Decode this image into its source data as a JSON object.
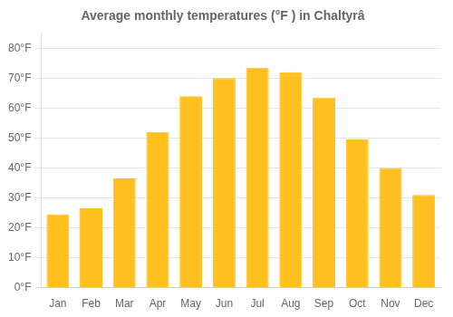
{
  "chart_data": {
    "type": "bar",
    "title": "Average monthly temperatures (°F ) in Chaltyrâ",
    "categories": [
      "Jan",
      "Feb",
      "Mar",
      "Apr",
      "May",
      "Jun",
      "Jul",
      "Aug",
      "Sep",
      "Oct",
      "Nov",
      "Dec"
    ],
    "values": [
      24.5,
      26.5,
      36.5,
      52.0,
      64.0,
      70.0,
      73.5,
      72.0,
      63.5,
      49.5,
      40.0,
      31.0
    ],
    "color": "#FFC020",
    "ylim": [
      0,
      85
    ],
    "yticks": [
      {
        "value": 0,
        "label": "0°F"
      },
      {
        "value": 10,
        "label": "10°F"
      },
      {
        "value": 20,
        "label": "20°F"
      },
      {
        "value": 30,
        "label": "30°F"
      },
      {
        "value": 40,
        "label": "40°F"
      },
      {
        "value": 50,
        "label": "50°F"
      },
      {
        "value": 60,
        "label": "60°F"
      },
      {
        "value": 70,
        "label": "70°F"
      },
      {
        "value": 80,
        "label": "80°F"
      }
    ],
    "grid": true
  }
}
